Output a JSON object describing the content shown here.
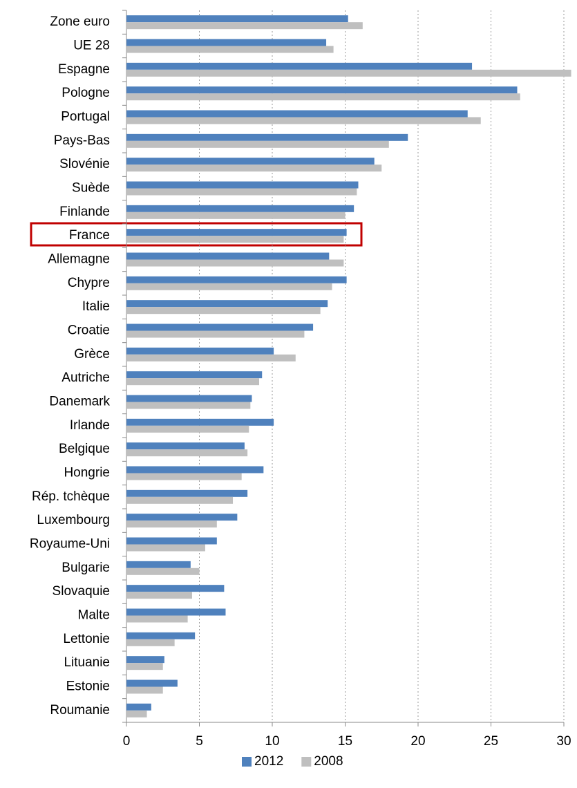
{
  "chart_data": {
    "type": "bar",
    "orientation": "horizontal",
    "categories": [
      "Zone euro",
      "UE 28",
      "Espagne",
      "Pologne",
      "Portugal",
      "Pays-Bas",
      "Slovénie",
      "Suède",
      "Finlande",
      "France",
      "Allemagne",
      "Chypre",
      "Italie",
      "Croatie",
      "Grèce",
      "Autriche",
      "Danemark",
      "Irlande",
      "Belgique",
      "Hongrie",
      "Rép. tchèque",
      "Luxembourg",
      "Royaume-Uni",
      "Bulgarie",
      "Slovaquie",
      "Malte",
      "Lettonie",
      "Lituanie",
      "Estonie",
      "Roumanie"
    ],
    "series": [
      {
        "name": "2012",
        "color": "#4f81bd",
        "values": [
          15.2,
          13.7,
          23.7,
          26.8,
          23.4,
          19.3,
          17.0,
          15.9,
          15.6,
          15.1,
          13.9,
          15.1,
          13.8,
          12.8,
          10.1,
          9.3,
          8.6,
          10.1,
          8.1,
          9.4,
          8.3,
          7.6,
          6.2,
          4.4,
          6.7,
          6.8,
          4.7,
          2.6,
          3.5,
          1.7
        ]
      },
      {
        "name": "2008",
        "color": "#bfbfbf",
        "values": [
          16.2,
          14.2,
          30.5,
          27.0,
          24.3,
          18.0,
          17.5,
          15.8,
          15.0,
          14.9,
          14.9,
          14.1,
          13.3,
          12.2,
          11.6,
          9.1,
          8.5,
          8.4,
          8.3,
          7.9,
          7.3,
          6.2,
          5.4,
          5.0,
          4.5,
          4.2,
          3.3,
          2.5,
          2.5,
          1.4
        ]
      }
    ],
    "xlim": [
      0,
      30
    ],
    "xticks": [
      0,
      5,
      10,
      15,
      20,
      25,
      30
    ],
    "grid": true,
    "legend": "bottom"
  }
}
